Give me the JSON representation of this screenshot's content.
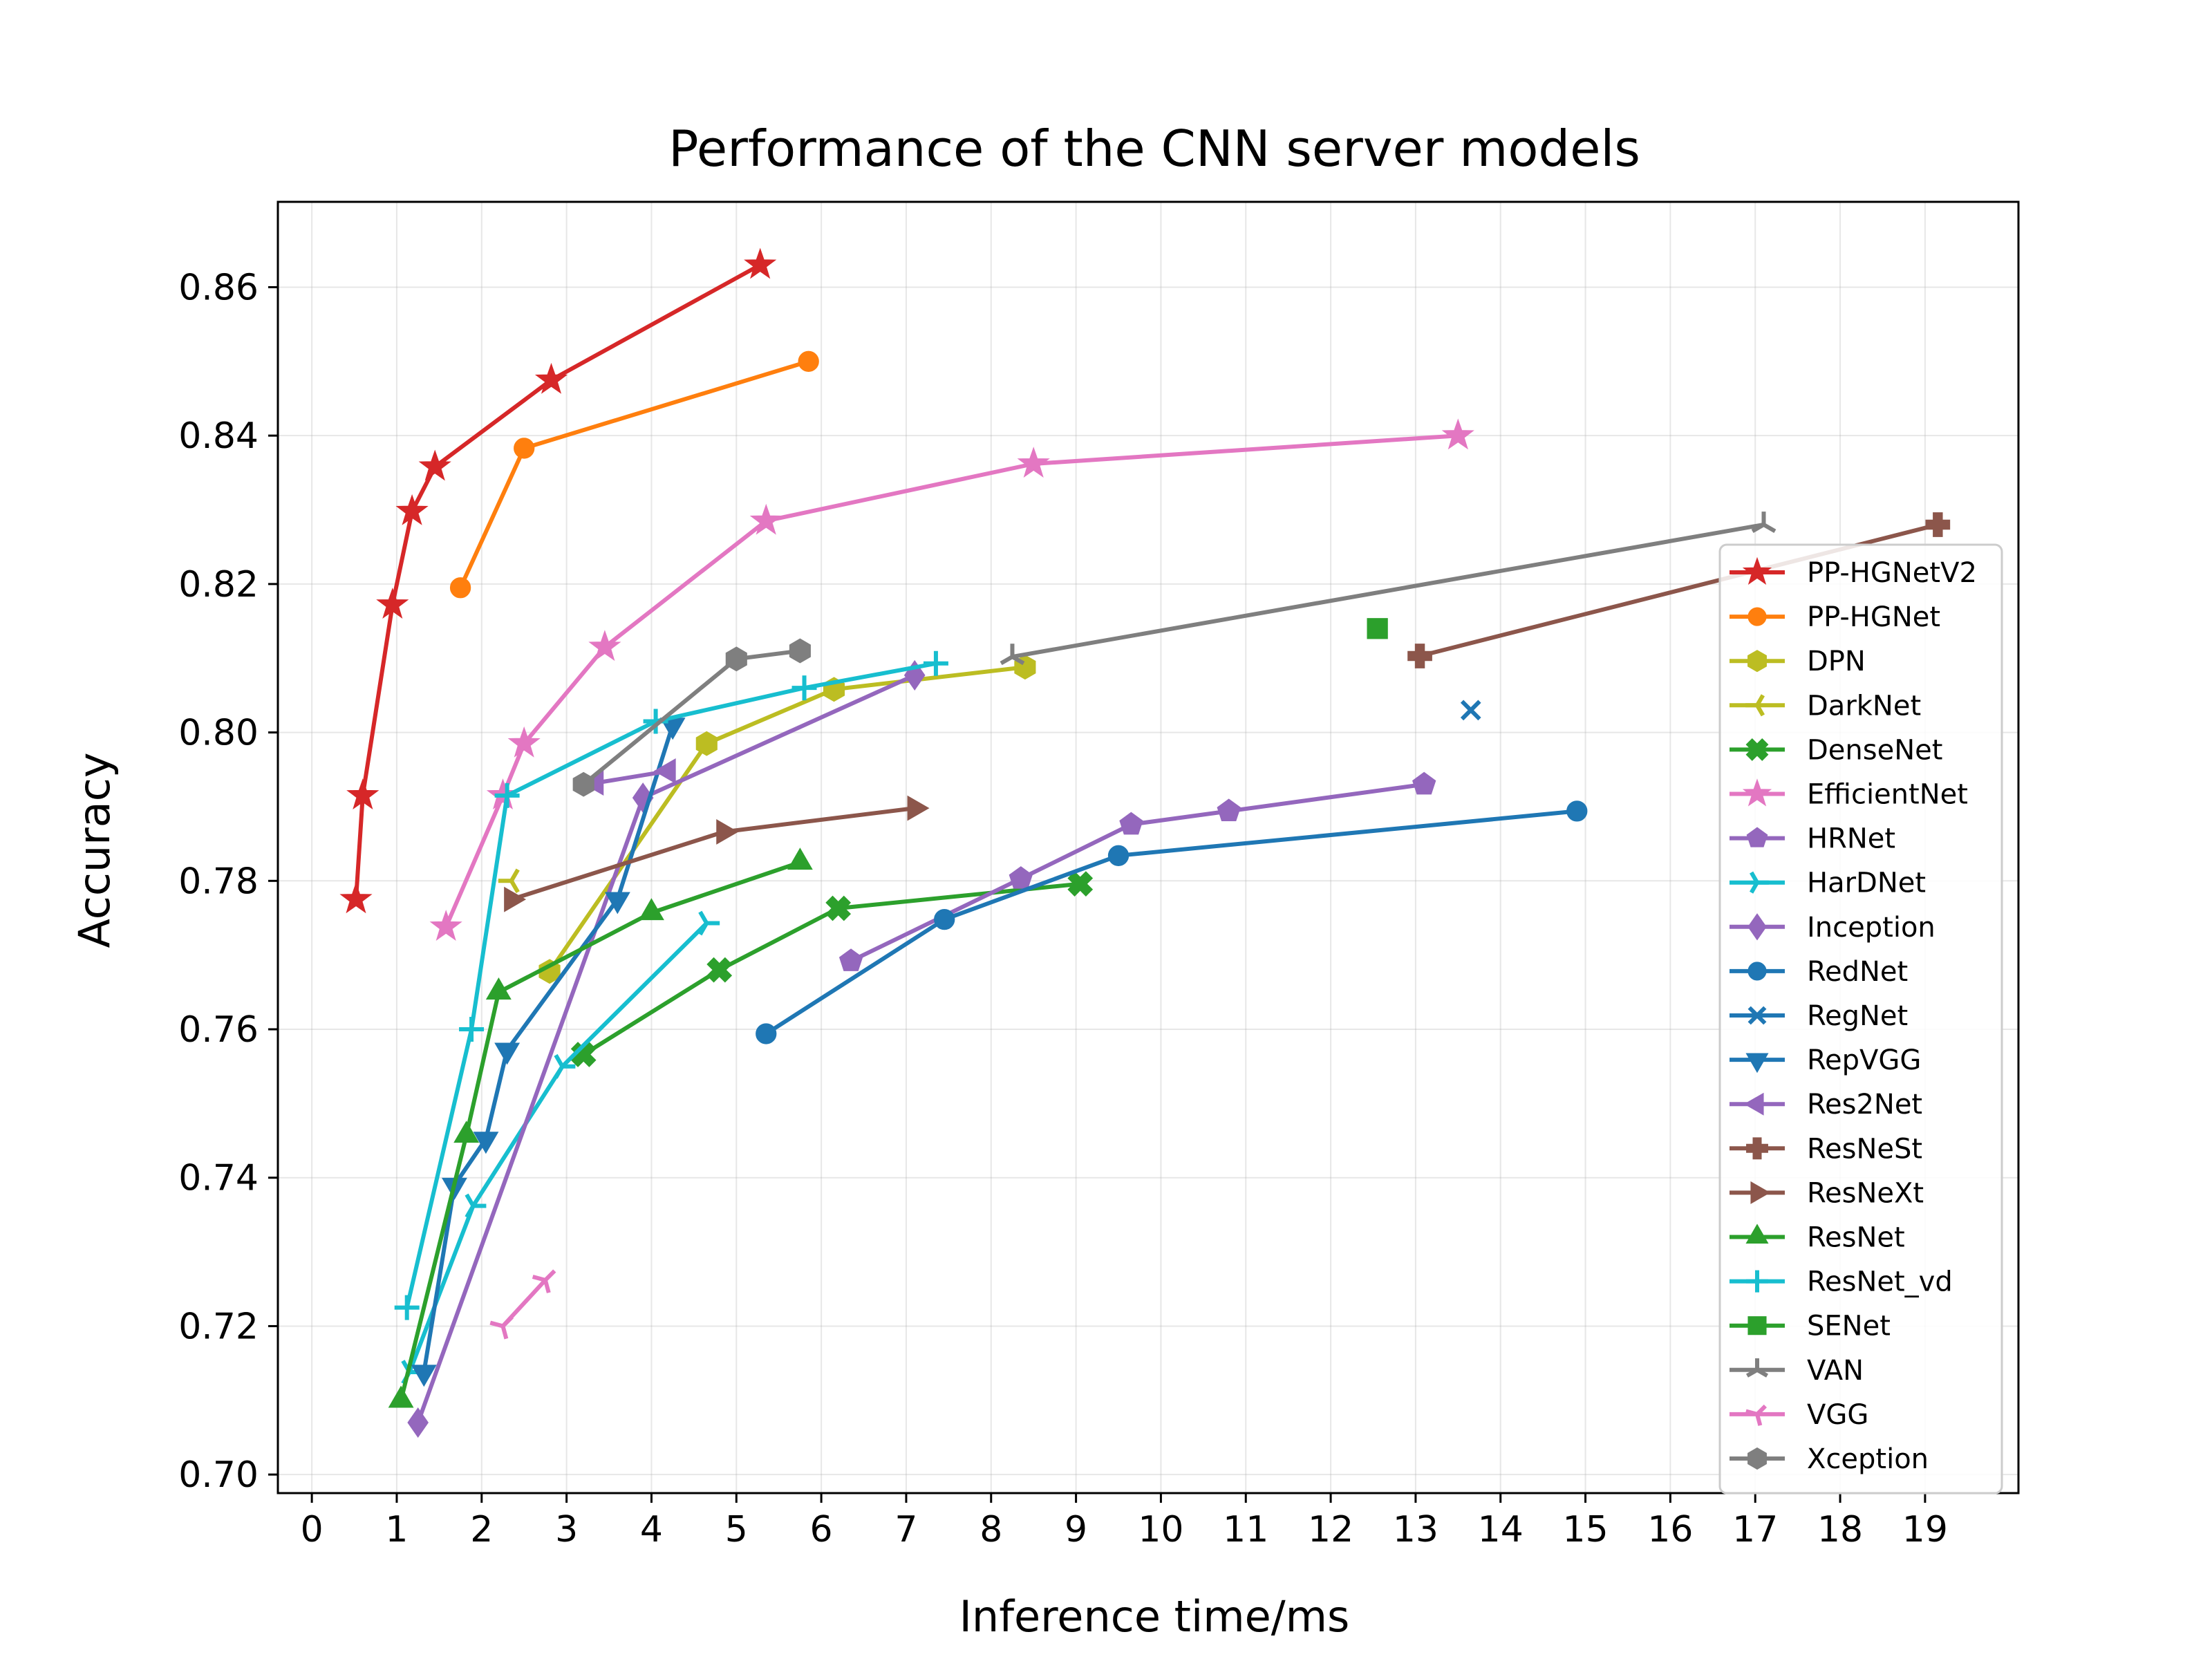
{
  "chart_data": {
    "type": "line",
    "title": "Performance of the CNN server models",
    "xlabel": "Inference time/ms",
    "ylabel": "Accuracy",
    "xlim": [
      -0.4,
      20.1
    ],
    "ylim": [
      0.6975,
      0.8715
    ],
    "xticks": [
      0,
      1,
      2,
      3,
      4,
      5,
      6,
      7,
      8,
      9,
      10,
      11,
      12,
      13,
      14,
      15,
      16,
      17,
      18,
      19
    ],
    "yticks": [
      0.7,
      0.72,
      0.74,
      0.76,
      0.78,
      0.8,
      0.82,
      0.84,
      0.86
    ],
    "ytick_labels": [
      "0.70",
      "0.72",
      "0.74",
      "0.76",
      "0.78",
      "0.80",
      "0.82",
      "0.84",
      "0.86"
    ],
    "grid": true,
    "legend_position": "right",
    "series": [
      {
        "name": "PP-HGNetV2",
        "color": "#d62728",
        "marker": "star",
        "x": [
          0.52,
          0.6,
          0.95,
          1.18,
          1.45,
          2.82,
          5.28
        ],
        "y": [
          0.7775,
          0.7915,
          0.8172,
          0.8298,
          0.8358,
          0.8475,
          0.863
        ]
      },
      {
        "name": "PP-HGNet",
        "color": "#ff7f0e",
        "marker": "circle",
        "x": [
          1.75,
          2.5,
          5.85
        ],
        "y": [
          0.8195,
          0.8383,
          0.85
        ]
      },
      {
        "name": "DPN",
        "color": "#bcbd22",
        "marker": "hexagon",
        "x": [
          2.8,
          4.65,
          6.15,
          8.4
        ],
        "y": [
          0.7678,
          0.7985,
          0.8058,
          0.8088
        ]
      },
      {
        "name": "DarkNet",
        "color": "#bcbd22",
        "marker": "tri_left",
        "x": [
          2.35
        ],
        "y": [
          0.78
        ]
      },
      {
        "name": "DenseNet",
        "color": "#2ca02c",
        "marker": "x_filled",
        "x": [
          3.2,
          4.8,
          6.2,
          9.05
        ],
        "y": [
          0.7566,
          0.768,
          0.7763,
          0.7796
        ]
      },
      {
        "name": "EfficientNet",
        "color": "#e377c2",
        "marker": "star",
        "x": [
          1.58,
          2.25,
          2.5,
          3.45,
          5.35,
          8.5,
          13.5
        ],
        "y": [
          0.7738,
          0.7915,
          0.7985,
          0.8115,
          0.8285,
          0.8362,
          0.84
        ]
      },
      {
        "name": "HRNet",
        "color": "#9467bd",
        "marker": "pentagon",
        "x": [
          6.35,
          8.35,
          9.65,
          10.8,
          13.1
        ],
        "y": [
          0.7692,
          0.7803,
          0.7876,
          0.7894,
          0.793
        ]
      },
      {
        "name": "HarDNet",
        "color": "#17becf",
        "marker": "tri_right",
        "x": [
          1.15,
          1.9,
          2.95,
          4.65
        ],
        "y": [
          0.7138,
          0.7362,
          0.755,
          0.7743
        ]
      },
      {
        "name": "Inception",
        "color": "#9467bd",
        "marker": "diamond",
        "x": [
          1.25,
          3.9,
          7.1
        ],
        "y": [
          0.707,
          0.7912,
          0.8077
        ]
      },
      {
        "name": "RedNet",
        "color": "#1f77b4",
        "marker": "circle",
        "x": [
          5.35,
          7.45,
          9.5,
          14.9
        ],
        "y": [
          0.7594,
          0.7748,
          0.7834,
          0.7894
        ]
      },
      {
        "name": "RegNet",
        "color": "#1f77b4",
        "marker": "x",
        "x": [
          13.65
        ],
        "y": [
          0.803
        ]
      },
      {
        "name": "RepVGG",
        "color": "#1f77b4",
        "marker": "triangle_down",
        "x": [
          1.32,
          1.68,
          2.05,
          2.3,
          3.6,
          4.25
        ],
        "y": [
          0.7138,
          0.739,
          0.7452,
          0.7572,
          0.7775,
          0.801
        ]
      },
      {
        "name": "Res2Net",
        "color": "#9467bd",
        "marker": "triangle_left",
        "x": [
          3.35,
          4.2
        ],
        "y": [
          0.7932,
          0.7948
        ]
      },
      {
        "name": "ResNeSt",
        "color": "#8c564b",
        "marker": "plus_filled",
        "x": [
          13.05,
          19.15
        ],
        "y": [
          0.8103,
          0.828
        ]
      },
      {
        "name": "ResNeXt",
        "color": "#8c564b",
        "marker": "triangle_right",
        "x": [
          2.35,
          4.85,
          7.1
        ],
        "y": [
          0.7775,
          0.7866,
          0.7898
        ]
      },
      {
        "name": "ResNet",
        "color": "#2ca02c",
        "marker": "triangle_up",
        "x": [
          1.05,
          1.82,
          2.2,
          4.0,
          5.75
        ],
        "y": [
          0.71,
          0.7457,
          0.765,
          0.7757,
          0.7825
        ]
      },
      {
        "name": "ResNet_vd",
        "color": "#17becf",
        "marker": "plus",
        "x": [
          1.12,
          1.88,
          2.3,
          4.05,
          5.8,
          7.35
        ],
        "y": [
          0.7225,
          0.76,
          0.7915,
          0.8015,
          0.806,
          0.8093
        ]
      },
      {
        "name": "SENet",
        "color": "#2ca02c",
        "marker": "square",
        "x": [
          12.55
        ],
        "y": [
          0.814
        ]
      },
      {
        "name": "VAN",
        "color": "#7f7f7f",
        "marker": "tri_up",
        "x": [
          8.25,
          17.1
        ],
        "y": [
          0.8102,
          0.828
        ]
      },
      {
        "name": "VGG",
        "color": "#e377c2",
        "marker": "tri_up_right",
        "x": [
          2.25,
          2.75
        ],
        "y": [
          0.72,
          0.7262
        ]
      },
      {
        "name": "Xception",
        "color": "#7f7f7f",
        "marker": "hexagon",
        "x": [
          3.2,
          5.0,
          5.75
        ],
        "y": [
          0.793,
          0.8099,
          0.811
        ]
      }
    ]
  }
}
